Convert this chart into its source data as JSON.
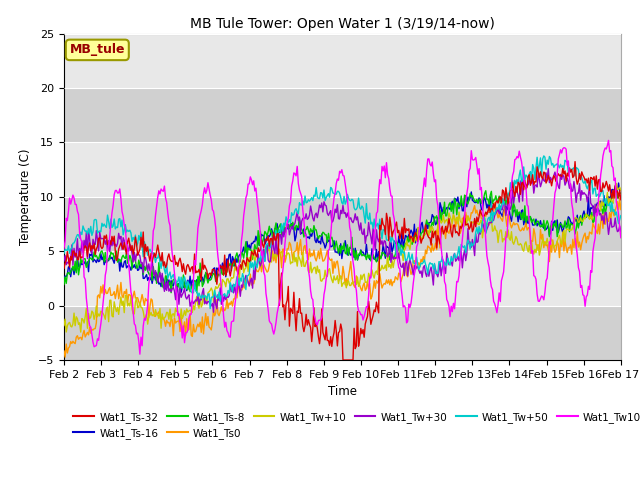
{
  "title": "MB Tule Tower: Open Water 1 (3/19/14-now)",
  "xlabel": "Time",
  "ylabel": "Temperature (C)",
  "ylim": [
    -5,
    25
  ],
  "yticks": [
    -5,
    0,
    5,
    10,
    15,
    20,
    25
  ],
  "background_color": "#ffffff",
  "plot_bg_color": "#e8e8e8",
  "x_ticks_labels": [
    "Feb 2",
    "Feb 3",
    "Feb 4",
    "Feb 5",
    "Feb 6",
    "Feb 7",
    "Feb 8",
    "Feb 9",
    "Feb 10",
    "Feb 11",
    "Feb 12",
    "Feb 13",
    "Feb 14",
    "Feb 15",
    "Feb 16",
    "Feb 17"
  ],
  "legend_label": "MB_tule",
  "legend_bg": "#ffff99",
  "series_colors": {
    "Wat1_Ts-32": "#dd0000",
    "Wat1_Ts-16": "#0000cc",
    "Wat1_Ts-8": "#00cc00",
    "Wat1_Ts0": "#ff9900",
    "Wat1_Tw+10": "#cccc00",
    "Wat1_Tw+30": "#9900cc",
    "Wat1_Tw+50": "#00cccc",
    "Wat1_Tw100": "#ff00ff"
  },
  "legend_row1": [
    "Wat1_Ts-32",
    "Wat1_Ts-16",
    "Wat1_Ts-8",
    "Wat1_Ts0",
    "Wat1_Tw+10",
    "Wat1_Tw+30"
  ],
  "legend_row2": [
    "Wat1_Tw+50",
    "Wat1_Tw100"
  ]
}
